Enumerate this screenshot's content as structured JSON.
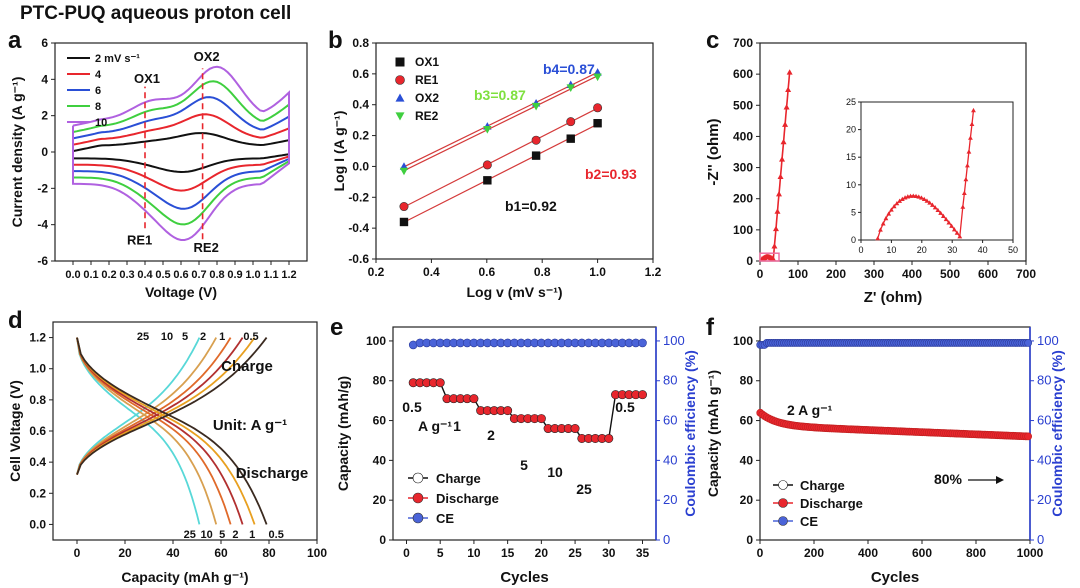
{
  "figure_title": "PTC-PUQ aqueous proton cell",
  "colors": {
    "black": "#111111",
    "red": "#e8262d",
    "blue": "#2a4fd6",
    "green": "#3fcf3f",
    "purple": "#b061e0",
    "cyan": "#5fe3e3",
    "ce_blue": "#4a63d8",
    "right_axis": "#2a3fd0",
    "b3_green": "#7fe03f"
  },
  "chart_data": [
    {
      "panel": "a",
      "type": "line",
      "xlabel": "Voltage  (V)",
      "ylabel": "Current density (A g⁻¹)",
      "xlim": [
        -0.1,
        1.3
      ],
      "ylim": [
        -6,
        6
      ],
      "xticks": [
        "0.0",
        "0.1",
        "0.2",
        "0.3",
        "0.4",
        "0.5",
        "0.6",
        "0.7",
        "0.8",
        "0.9",
        "1.0",
        "1.1",
        "1.2"
      ],
      "yticks": [
        "-6",
        "-4",
        "-2",
        "0",
        "2",
        "4",
        "6"
      ],
      "legend": [
        "2 mV s⁻¹",
        "4",
        "6",
        "8",
        "10"
      ],
      "series": [
        {
          "name": "2 mV s⁻¹",
          "anodic_peak": [
            0.72,
            0.9
          ],
          "cathodic_peak": [
            0.62,
            -0.9
          ]
        },
        {
          "name": "4",
          "anodic_peak": [
            0.74,
            1.8
          ],
          "cathodic_peak": [
            0.62,
            -1.7
          ]
        },
        {
          "name": "6",
          "anodic_peak": [
            0.76,
            2.6
          ],
          "cathodic_peak": [
            0.63,
            -2.5
          ]
        },
        {
          "name": "8",
          "anodic_peak": [
            0.78,
            3.3
          ],
          "cathodic_peak": [
            0.63,
            -3.1
          ]
        },
        {
          "name": "10",
          "anodic_peak": [
            0.8,
            3.9
          ],
          "cathodic_peak": [
            0.63,
            -3.7
          ]
        }
      ],
      "annotations": [
        "OX1",
        "OX2",
        "RE1",
        "RE2"
      ]
    },
    {
      "panel": "b",
      "type": "scatter",
      "xlabel": "Log v (mV s⁻¹)",
      "ylabel": "Log I (A g⁻¹)",
      "xlim": [
        0.2,
        1.2
      ],
      "ylim": [
        -0.6,
        0.8
      ],
      "xticks": [
        "0.2",
        "0.4",
        "0.6",
        "0.8",
        "1.0",
        "1.2"
      ],
      "yticks": [
        "-0.6",
        "-0.4",
        "-0.2",
        "0.0",
        "0.2",
        "0.4",
        "0.6",
        "0.8"
      ],
      "x": [
        0.301,
        0.602,
        0.778,
        0.903,
        1.0
      ],
      "series": [
        {
          "name": "OX1",
          "values": [
            -0.36,
            -0.09,
            0.07,
            0.18,
            0.28
          ]
        },
        {
          "name": "RE1",
          "values": [
            -0.26,
            0.01,
            0.17,
            0.29,
            0.38
          ]
        },
        {
          "name": "OX2",
          "values": [
            0.0,
            0.26,
            0.41,
            0.53,
            0.61
          ]
        },
        {
          "name": "RE2",
          "values": [
            -0.03,
            0.24,
            0.39,
            0.51,
            0.58
          ]
        }
      ],
      "annotations": [
        "b1=0.92",
        "b2=0.93",
        "b3=0.87",
        "b4=0.87"
      ]
    },
    {
      "panel": "c",
      "type": "line",
      "xlabel": "Z' (ohm)",
      "ylabel": "-Z'' (ohm)",
      "xlim": [
        0,
        700
      ],
      "ylim": [
        0,
        700
      ],
      "xticks": [
        "0",
        "100",
        "200",
        "300",
        "400",
        "500",
        "600",
        "700"
      ],
      "yticks": [
        "0",
        "100",
        "200",
        "300",
        "400",
        "500",
        "600",
        "700"
      ],
      "inset": {
        "xlim": [
          0,
          50
        ],
        "ylim": [
          0,
          25
        ],
        "xticks": [
          "0",
          "10",
          "20",
          "30",
          "40",
          "50"
        ],
        "yticks": [
          "0",
          "5",
          "10",
          "15",
          "20",
          "25"
        ]
      }
    },
    {
      "panel": "d",
      "type": "line",
      "xlabel": "Capacity (mAh g⁻¹)",
      "ylabel": "Cell Voltage (V)",
      "xlim": [
        -10,
        100
      ],
      "ylim": [
        -0.1,
        1.3
      ],
      "xticks": [
        "0",
        "20",
        "40",
        "60",
        "80",
        "100"
      ],
      "yticks": [
        "0.0",
        "0.2",
        "0.4",
        "0.6",
        "0.8",
        "1.0",
        "1.2"
      ],
      "series": [
        {
          "name": "0.5",
          "capacity": 79
        },
        {
          "name": "1",
          "capacity": 74
        },
        {
          "name": "2",
          "capacity": 69
        },
        {
          "name": "5",
          "capacity": 64
        },
        {
          "name": "10",
          "capacity": 58
        },
        {
          "name": "25",
          "capacity": 51
        }
      ],
      "annotations": [
        "Charge",
        "Discharge",
        "Unit: A g⁻¹"
      ],
      "top_labels": [
        "25",
        "10",
        "5",
        "2",
        "1",
        "0.5"
      ],
      "bottom_labels": [
        "25",
        "10",
        "5",
        "2",
        "1",
        "0.5"
      ]
    },
    {
      "panel": "e",
      "type": "scatter",
      "xlabel": "Cycles",
      "ylabel": "Capacity (mAh/g)",
      "y2label": "Coulombic efficiency (%)",
      "xlim": [
        -2,
        37
      ],
      "ylim": [
        0,
        107
      ],
      "y2lim": [
        0,
        107
      ],
      "xticks": [
        "0",
        "5",
        "10",
        "15",
        "20",
        "25",
        "30",
        "35"
      ],
      "yticks": [
        "0",
        "20",
        "40",
        "60",
        "80",
        "100"
      ],
      "y2ticks": [
        "0",
        "20",
        "40",
        "60",
        "80",
        "100"
      ],
      "legend": [
        "Charge",
        "Discharge",
        "CE"
      ],
      "rate_steps": [
        {
          "label": "0.5",
          "cycles": [
            1,
            5
          ],
          "capacity": 79
        },
        {
          "label": "1",
          "cycles": [
            6,
            10
          ],
          "capacity": 71
        },
        {
          "label": "2",
          "cycles": [
            11,
            15
          ],
          "capacity": 65
        },
        {
          "label": "5",
          "cycles": [
            16,
            20
          ],
          "capacity": 61
        },
        {
          "label": "10",
          "cycles": [
            21,
            25
          ],
          "capacity": 56
        },
        {
          "label": "25",
          "cycles": [
            26,
            30
          ],
          "capacity": 51
        },
        {
          "label": "0.5",
          "cycles": [
            31,
            35
          ],
          "capacity": 73
        }
      ],
      "ce": 99,
      "annotations": [
        "0.5",
        "A g⁻¹",
        "1",
        "2",
        "5",
        "10",
        "25",
        "0.5"
      ]
    },
    {
      "panel": "f",
      "type": "scatter",
      "xlabel": "Cycles",
      "ylabel": "Capacity (mAh g⁻¹)",
      "y2label": "Coulombic efficiency (%)",
      "xlim": [
        0,
        1000
      ],
      "ylim": [
        0,
        107
      ],
      "y2lim": [
        0,
        107
      ],
      "xticks": [
        "0",
        "200",
        "400",
        "600",
        "800",
        "1000"
      ],
      "yticks": [
        "0",
        "20",
        "40",
        "60",
        "80",
        "100"
      ],
      "y2ticks": [
        "0",
        "20",
        "40",
        "60",
        "80",
        "100"
      ],
      "legend": [
        "Charge",
        "Discharge",
        "CE"
      ],
      "capacity_start": 64,
      "capacity_end": 52,
      "ce": 99,
      "annotations": [
        "2 A g⁻¹",
        "80%"
      ]
    }
  ],
  "panel_letters": [
    "a",
    "b",
    "c",
    "d",
    "e",
    "f"
  ]
}
